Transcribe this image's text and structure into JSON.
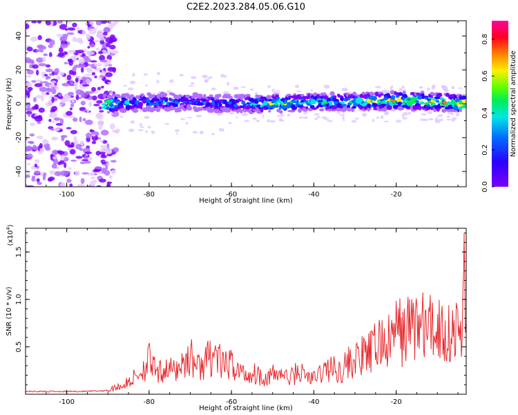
{
  "figure_title": "C2E2.2023.284.05.06.G10",
  "colors": {
    "snr_line": "#e8272b",
    "axis": "#000000"
  },
  "colorbar": {
    "label": "Normalized spectral amplitude",
    "ticks": [
      "0.0",
      "0.2",
      "0.4",
      "0.6",
      "0.8"
    ],
    "range": [
      0,
      0.9
    ],
    "colormap": "rainbow (purple-blue-cyan-green-yellow-red-magenta)"
  },
  "chart_data": [
    {
      "type": "heatmap",
      "xlabel": "Height of straight line (km)",
      "ylabel": "Frequency (Hz)",
      "xlim": [
        -110,
        -3
      ],
      "ylim": [
        -49,
        49
      ],
      "xticks": [
        "-100",
        "-80",
        "-60",
        "-40",
        "-20"
      ],
      "yticks": [
        "40",
        "20",
        "0",
        "-20",
        "-40"
      ],
      "description_points": {
        "x": [
          -88,
          -80,
          -70,
          -60,
          -50,
          -40,
          -30,
          -20,
          -10,
          -4
        ],
        "center_freq": [
          0,
          1,
          1,
          0,
          0,
          1,
          1,
          2,
          1,
          0
        ],
        "peak_amplitude": [
          0.55,
          0.5,
          0.45,
          0.45,
          0.75,
          0.65,
          0.7,
          0.8,
          0.85,
          0.85
        ]
      }
    },
    {
      "type": "line",
      "xlabel": "Height of straight line (km)",
      "ylabel": "SNR (10 * v/v)",
      "y_multiplier": "(x10",
      "y_multiplier_exp": "4",
      "y_multiplier_close": ")",
      "xlim": [
        -110,
        -3
      ],
      "ylim": [
        0,
        1.75
      ],
      "xticks": [
        "-100",
        "-80",
        "-60",
        "-40",
        "-20"
      ],
      "yticks": [
        "1.5",
        "1.0",
        "0.5"
      ],
      "series": [
        {
          "x": [
            -110,
            -100,
            -95,
            -90,
            -88,
            -86,
            -84,
            -82,
            -80,
            -78,
            -76,
            -74,
            -72,
            -70,
            -68,
            -66,
            -64,
            -62,
            -60,
            -58,
            -56,
            -54,
            -52,
            -50,
            -48,
            -46,
            -44,
            -42,
            -40,
            -38,
            -36,
            -34,
            -32,
            -30,
            -28,
            -26,
            -24,
            -22,
            -20,
            -18,
            -16,
            -14,
            -12,
            -10,
            -8,
            -6,
            -4,
            -3.5,
            -3
          ],
          "y": [
            0.03,
            0.03,
            0.03,
            0.04,
            0.1,
            0.12,
            0.2,
            0.3,
            0.45,
            0.25,
            0.35,
            0.3,
            0.4,
            0.5,
            0.35,
            0.45,
            0.55,
            0.35,
            0.4,
            0.3,
            0.25,
            0.28,
            0.22,
            0.25,
            0.28,
            0.2,
            0.3,
            0.25,
            0.2,
            0.3,
            0.35,
            0.3,
            0.4,
            0.45,
            0.5,
            0.55,
            0.7,
            0.65,
            0.85,
            0.8,
            0.95,
            0.9,
            0.85,
            0.9,
            0.8,
            0.85,
            0.75,
            1.7,
            0.7
          ]
        }
      ]
    }
  ]
}
